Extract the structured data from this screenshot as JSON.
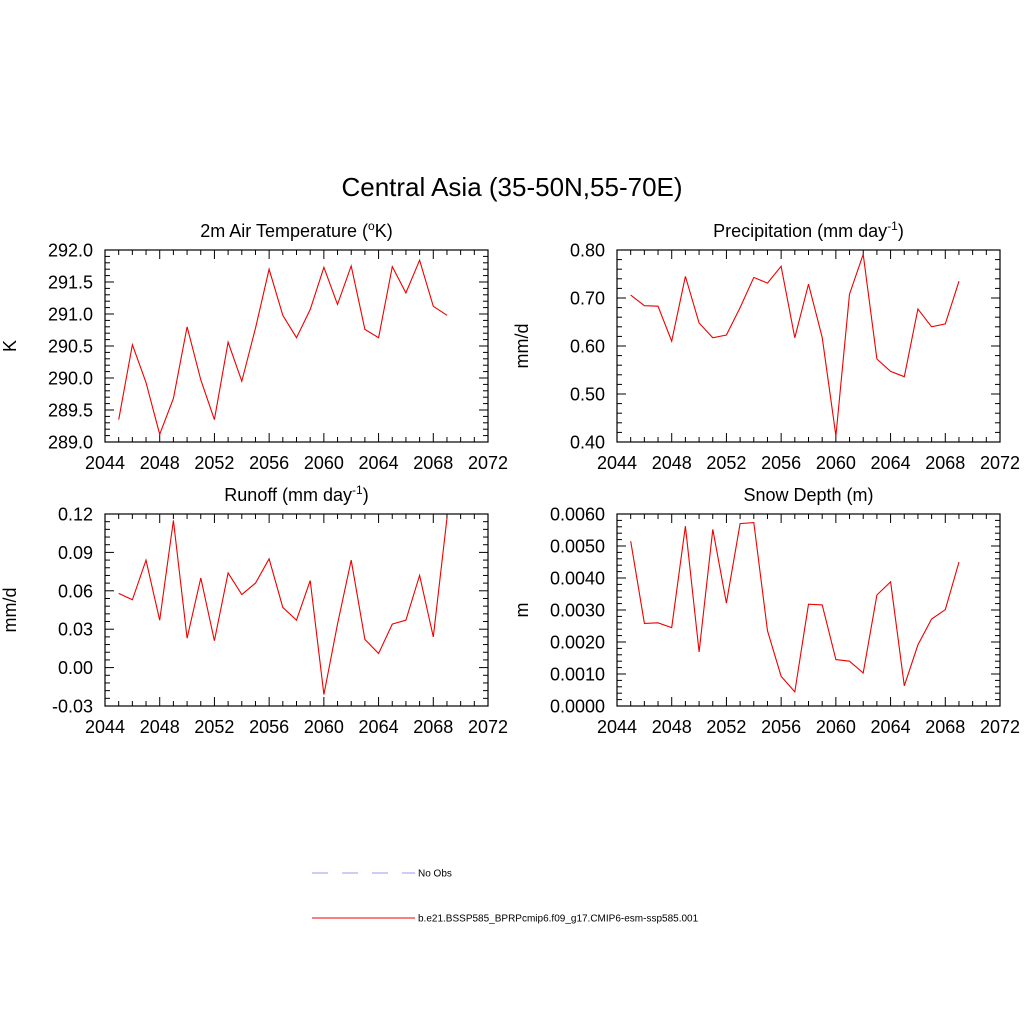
{
  "figure": {
    "title": "Central Asia (35-50N,55-70E)"
  },
  "legend": {
    "items": [
      {
        "label": "No Obs",
        "color": "#9999ee",
        "style": "dashed"
      },
      {
        "label": "b.e21.BSSP585_BPRPcmip6.f09_g17.CMIP6-esm-ssp585.001",
        "color": "#ee0000",
        "style": "solid"
      }
    ]
  },
  "chart_data": [
    {
      "type": "line",
      "title": "2m Air Temperature (",
      "title_sup": "o",
      "title_end": "K)",
      "xlabel": "",
      "ylabel": "K",
      "xlim": [
        2044,
        2072
      ],
      "ylim": [
        289.0,
        292.0
      ],
      "xticks": [
        2044,
        2048,
        2052,
        2056,
        2060,
        2064,
        2068,
        2072
      ],
      "yticks": [
        289.0,
        289.5,
        290.0,
        290.5,
        291.0,
        291.5,
        292.0
      ],
      "ytick_decimals": 1,
      "grid": false,
      "series": [
        {
          "color": "#ee0000",
          "x": [
            2045,
            2046,
            2047,
            2048,
            2049,
            2050,
            2051,
            2052,
            2053,
            2054,
            2055,
            2056,
            2057,
            2058,
            2059,
            2060,
            2061,
            2062,
            2063,
            2064,
            2065,
            2066,
            2067,
            2068,
            2069
          ],
          "y": [
            289.35,
            290.52,
            289.93,
            289.12,
            289.68,
            290.8,
            289.97,
            289.35,
            290.56,
            289.95,
            290.78,
            291.7,
            290.98,
            290.63,
            291.07,
            291.73,
            291.15,
            291.75,
            290.76,
            290.63,
            291.74,
            291.33,
            291.84,
            291.12,
            290.98
          ]
        }
      ]
    },
    {
      "type": "line",
      "title": "Precipitation (mm day",
      "title_sup": "-1",
      "title_end": ")",
      "xlabel": "",
      "ylabel": "mm/d",
      "xlim": [
        2044,
        2072
      ],
      "ylim": [
        0.4,
        0.8
      ],
      "xticks": [
        2044,
        2048,
        2052,
        2056,
        2060,
        2064,
        2068,
        2072
      ],
      "yticks": [
        0.4,
        0.5,
        0.6,
        0.7,
        0.8
      ],
      "ytick_decimals": 2,
      "grid": false,
      "series": [
        {
          "color": "#ee0000",
          "x": [
            2045,
            2046,
            2047,
            2048,
            2049,
            2050,
            2051,
            2052,
            2053,
            2054,
            2055,
            2056,
            2057,
            2058,
            2059,
            2060,
            2061,
            2062,
            2063,
            2064,
            2065,
            2066,
            2067,
            2068,
            2069
          ],
          "y": [
            0.706,
            0.684,
            0.683,
            0.61,
            0.745,
            0.648,
            0.617,
            0.623,
            0.68,
            0.743,
            0.731,
            0.766,
            0.617,
            0.729,
            0.618,
            0.413,
            0.708,
            0.791,
            0.573,
            0.547,
            0.536,
            0.677,
            0.64,
            0.646,
            0.735
          ]
        }
      ]
    },
    {
      "type": "line",
      "title": "Runoff (mm day",
      "title_sup": "-1",
      "title_end": ")",
      "xlabel": "",
      "ylabel": "mm/d",
      "xlim": [
        2044,
        2072
      ],
      "ylim": [
        -0.03,
        0.12
      ],
      "xticks": [
        2044,
        2048,
        2052,
        2056,
        2060,
        2064,
        2068,
        2072
      ],
      "yticks": [
        -0.03,
        0.0,
        0.03,
        0.06,
        0.09,
        0.12
      ],
      "ytick_decimals": 2,
      "grid": false,
      "series": [
        {
          "color": "#ee0000",
          "x": [
            2045,
            2046,
            2047,
            2048,
            2049,
            2050,
            2051,
            2052,
            2053,
            2054,
            2055,
            2056,
            2057,
            2058,
            2059,
            2060,
            2061,
            2062,
            2063,
            2064,
            2065,
            2066,
            2067,
            2068,
            2069
          ],
          "y": [
            0.058,
            0.053,
            0.084,
            0.037,
            0.115,
            0.023,
            0.07,
            0.021,
            0.074,
            0.057,
            0.066,
            0.085,
            0.047,
            0.037,
            0.068,
            -0.021,
            0.034,
            0.084,
            0.022,
            0.011,
            0.034,
            0.037,
            0.072,
            0.024,
            0.117
          ]
        }
      ]
    },
    {
      "type": "line",
      "title": "Snow Depth (m)",
      "title_sup": "",
      "title_end": "",
      "xlabel": "",
      "ylabel": "m",
      "xlim": [
        2044,
        2072
      ],
      "ylim": [
        0.0,
        0.006
      ],
      "xticks": [
        2044,
        2048,
        2052,
        2056,
        2060,
        2064,
        2068,
        2072
      ],
      "yticks": [
        0.0,
        0.001,
        0.002,
        0.003,
        0.004,
        0.005,
        0.006
      ],
      "ytick_decimals": 4,
      "grid": false,
      "series": [
        {
          "color": "#ee0000",
          "x": [
            2045,
            2046,
            2047,
            2048,
            2049,
            2050,
            2051,
            2052,
            2053,
            2054,
            2055,
            2056,
            2057,
            2058,
            2059,
            2060,
            2061,
            2062,
            2063,
            2064,
            2065,
            2066,
            2067,
            2068,
            2069
          ],
          "y": [
            0.00515,
            0.00258,
            0.0026,
            0.00245,
            0.00562,
            0.00169,
            0.00552,
            0.00322,
            0.0057,
            0.00573,
            0.00235,
            0.00093,
            0.00044,
            0.00318,
            0.00316,
            0.00145,
            0.0014,
            0.00103,
            0.00347,
            0.00388,
            0.00063,
            0.00191,
            0.00272,
            0.00301,
            0.0045
          ]
        }
      ]
    }
  ]
}
